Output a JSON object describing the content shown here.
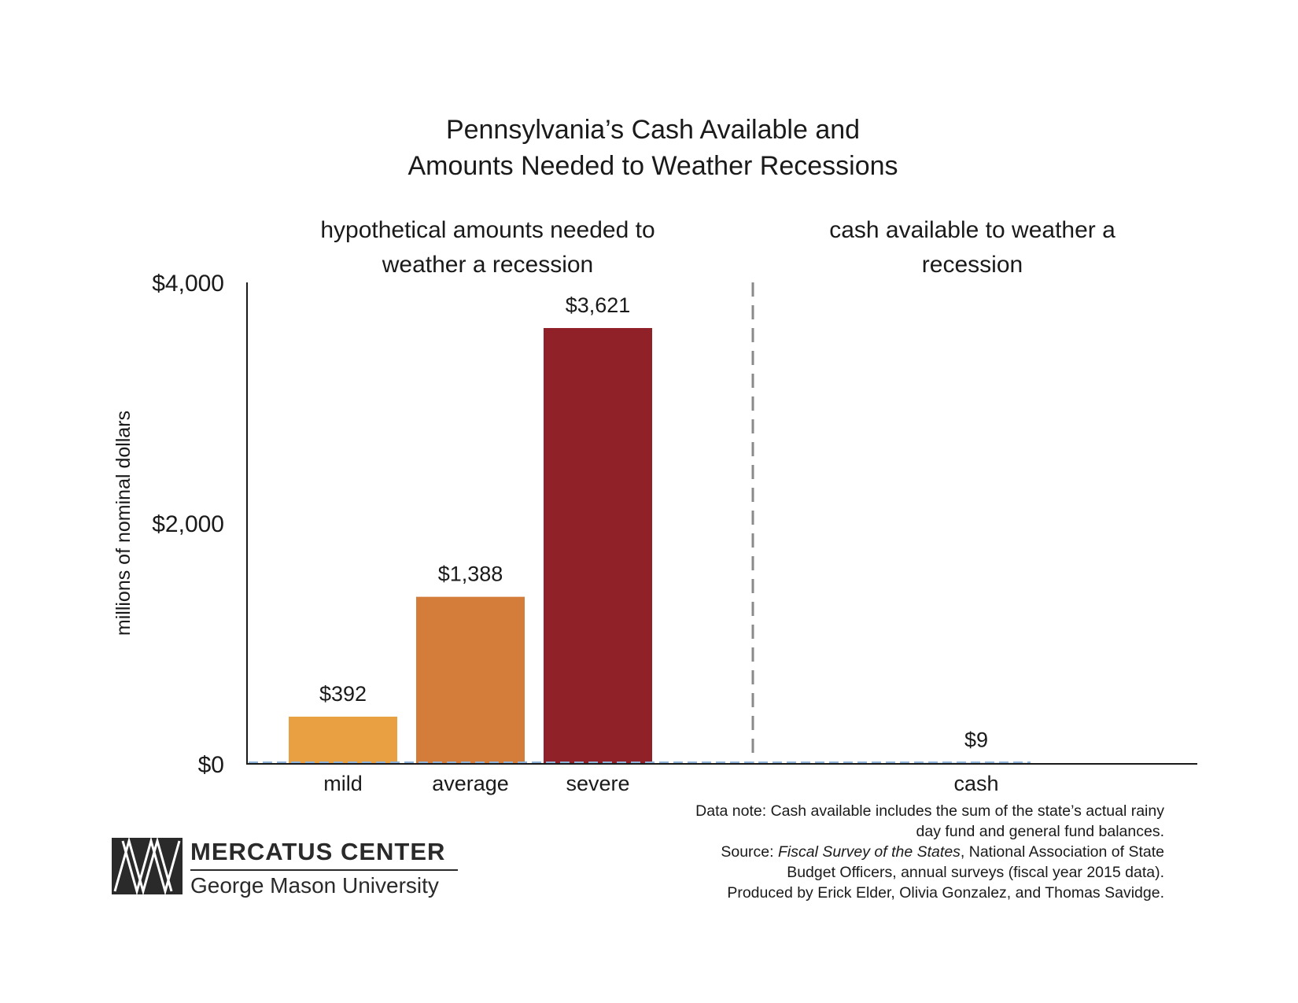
{
  "chart_data": {
    "type": "bar",
    "title": [
      "Pennsylvania’s Cash Available and",
      "Amounts Needed to Weather Recessions"
    ],
    "ylabel": "millions of nominal dollars",
    "ylim": [
      0,
      4000
    ],
    "yticks": [
      {
        "value": 0,
        "label": "$0"
      },
      {
        "value": 2000,
        "label": "$2,000"
      },
      {
        "value": 4000,
        "label": "$4,000"
      }
    ],
    "sections": [
      {
        "label": [
          "hypothetical amounts needed to",
          "weather a recession"
        ]
      },
      {
        "label": [
          "cash available to weather a",
          "recession"
        ]
      }
    ],
    "categories": [
      "mild",
      "average",
      "severe",
      "cash"
    ],
    "values": [
      392,
      1388,
      3621,
      9
    ],
    "value_labels": [
      "$392",
      "$1,388",
      "$3,621",
      "$9"
    ],
    "colors": [
      "#E8A042",
      "#D47D3A",
      "#912129",
      "#8FB3D9"
    ],
    "grid": false
  },
  "notes": {
    "line1": "Data note: Cash available includes the sum of the state’s actual rainy",
    "line2": "day fund and general fund balances.",
    "source_prefix": "Source: ",
    "source_title": "Fiscal Survey of the States",
    "source_rest": ", National Association of State",
    "line4": "Budget Officers, annual surveys (fiscal year 2015 data).",
    "line5": "Produced by Erick Elder, Olivia Gonzalez, and Thomas Savidge."
  },
  "logo": {
    "org": "MERCATUS CENTER",
    "university": "George Mason University"
  }
}
